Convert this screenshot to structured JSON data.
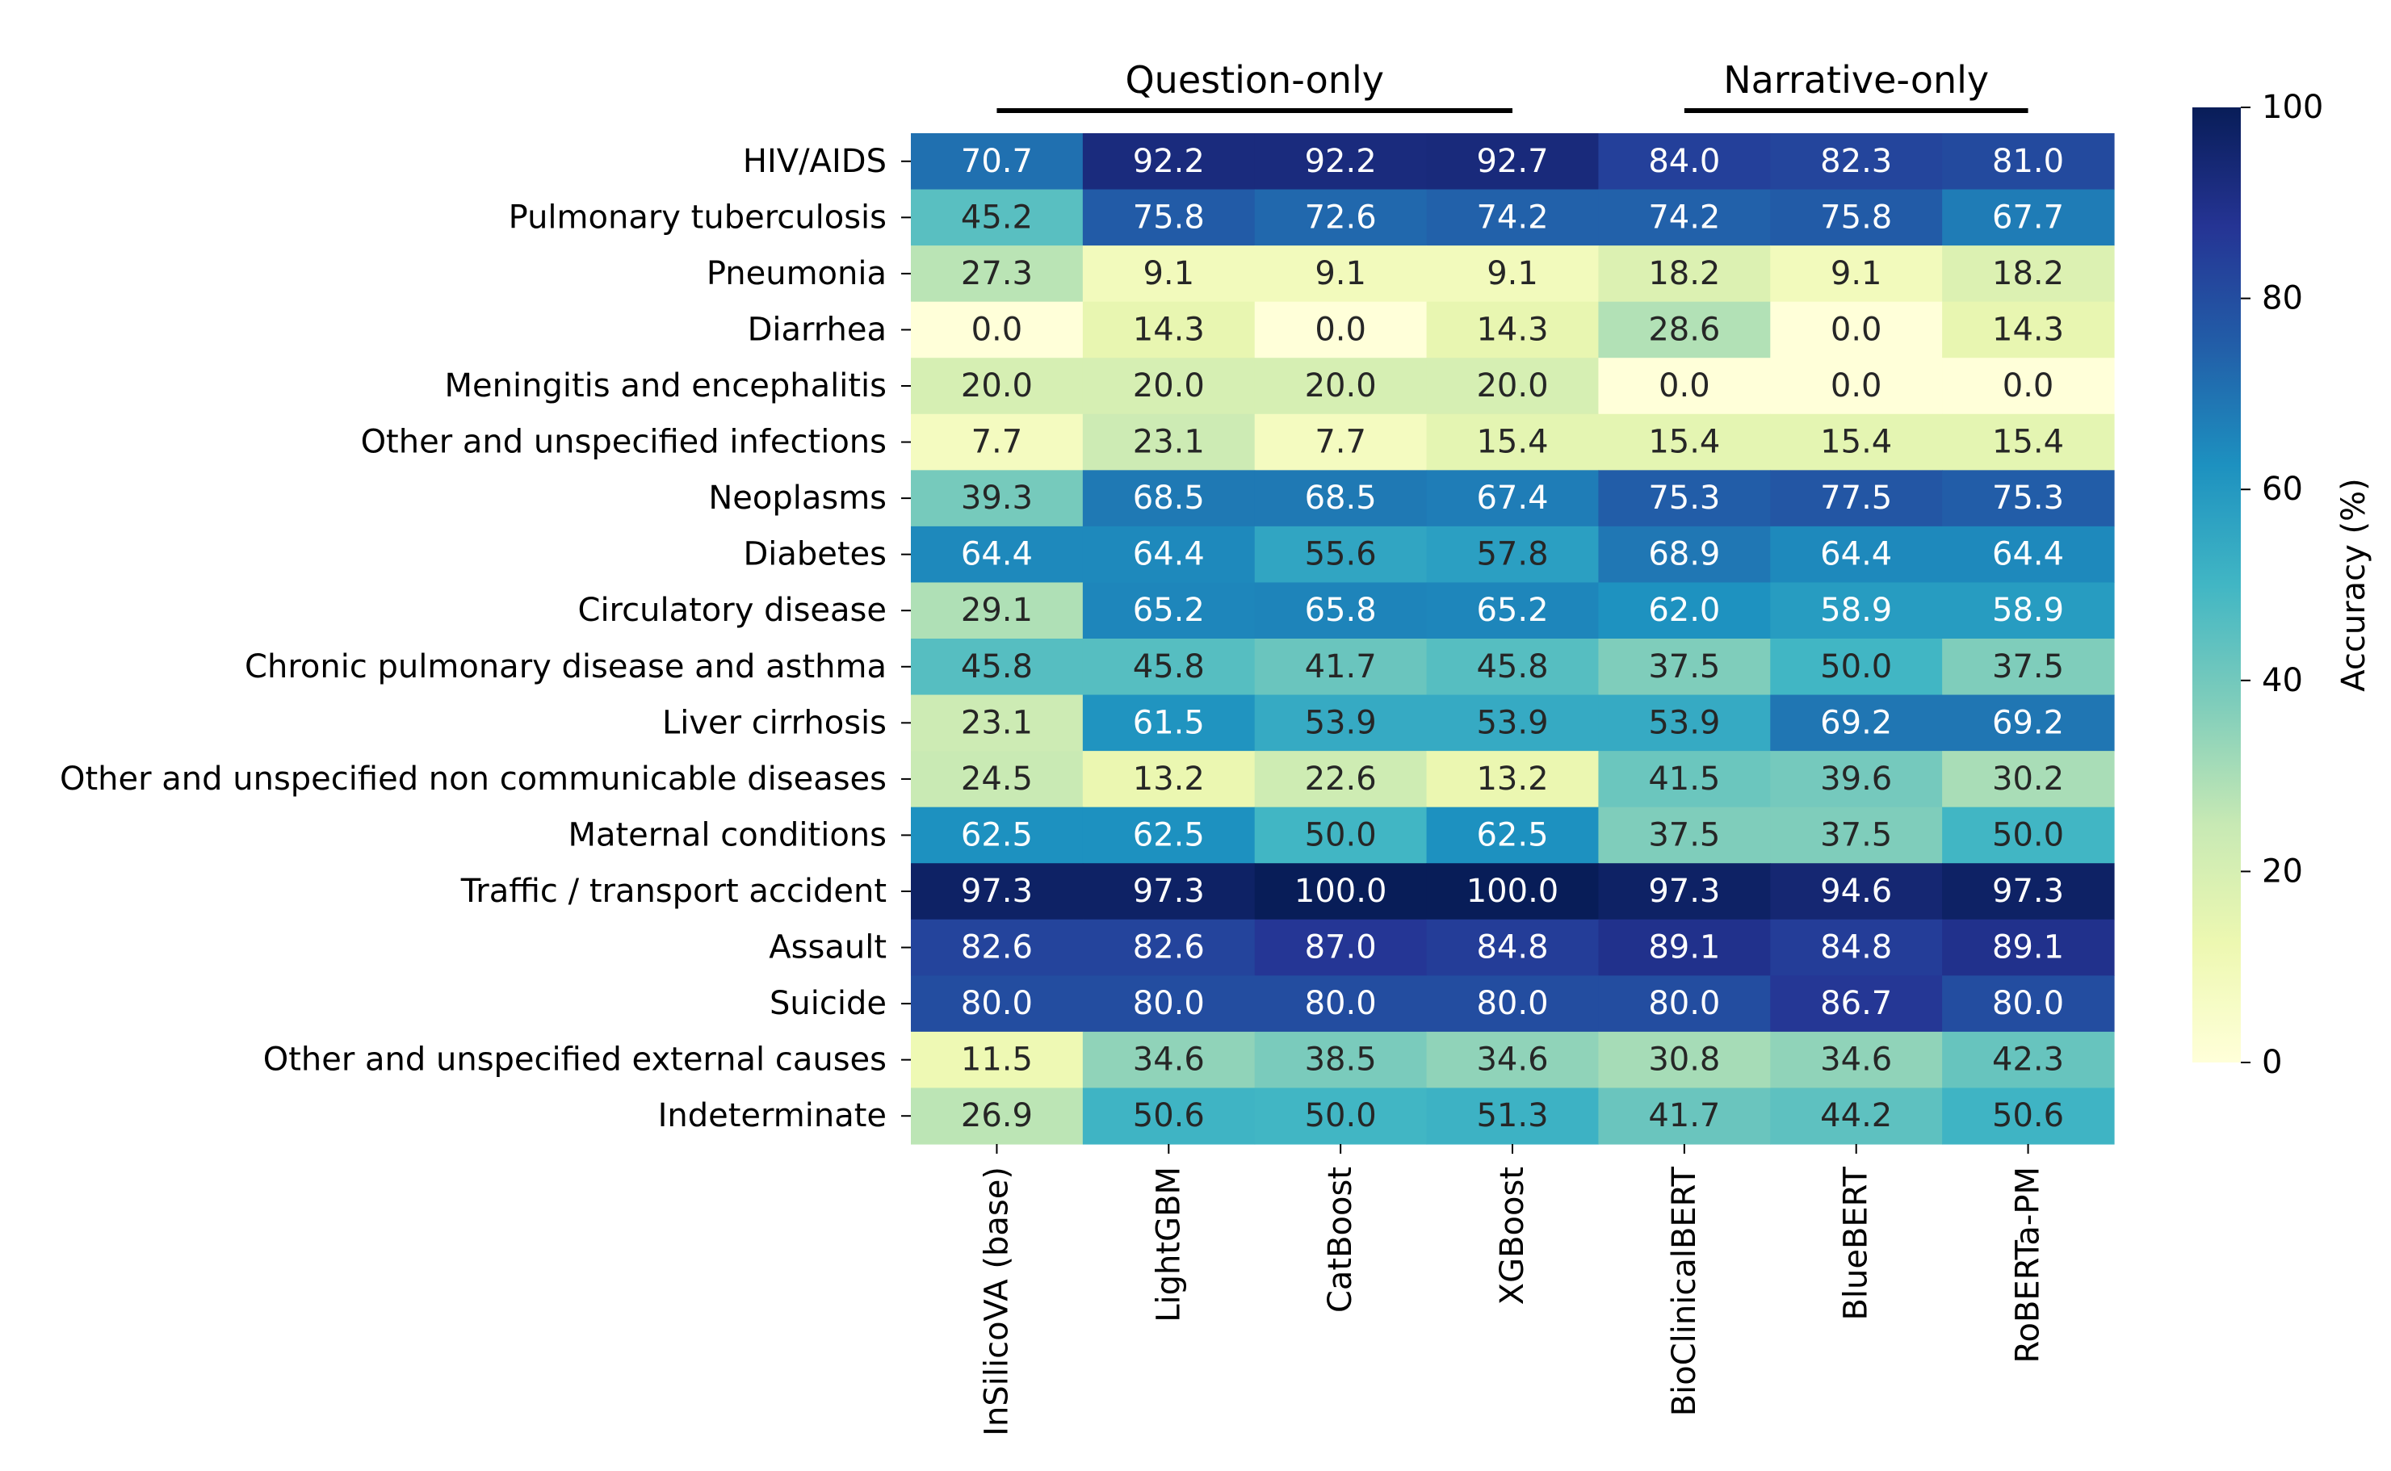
{
  "chart_data": {
    "type": "heatmap",
    "title": "",
    "xlabel": "",
    "ylabel": "",
    "groups": [
      {
        "label": "Question-only",
        "columns": [
          "InSilicoVA (base)",
          "LightGBM",
          "CatBoost",
          "XGBoost"
        ]
      },
      {
        "label": "Narrative-only",
        "columns": [
          "BioClinicalBERT",
          "BlueBERT",
          "RoBERTa-PM"
        ]
      }
    ],
    "columns": [
      "InSilicoVA (base)",
      "LightGBM",
      "CatBoost",
      "XGBoost",
      "BioClinicalBERT",
      "BlueBERT",
      "RoBERTa-PM"
    ],
    "rows": [
      "HIV/AIDS",
      "Pulmonary tuberculosis",
      "Pneumonia",
      "Diarrhea",
      "Meningitis and encephalitis",
      "Other and unspecified infections",
      "Neoplasms",
      "Diabetes",
      "Circulatory disease",
      "Chronic pulmonary disease and asthma",
      "Liver cirrhosis",
      "Other and unspecified non communicable diseases",
      "Maternal conditions",
      "Traffic / transport accident",
      "Assault",
      "Suicide",
      "Other and unspecified external causes",
      "Indeterminate"
    ],
    "values": [
      [
        "70.7",
        "92.2",
        "92.2",
        "92.7",
        "84.0",
        "82.3",
        "81.0"
      ],
      [
        "45.2",
        "75.8",
        "72.6",
        "74.2",
        "74.2",
        "75.8",
        "67.7"
      ],
      [
        "27.3",
        "9.1",
        "9.1",
        "9.1",
        "18.2",
        "9.1",
        "18.2"
      ],
      [
        "0.0",
        "14.3",
        "0.0",
        "14.3",
        "28.6",
        "0.0",
        "14.3"
      ],
      [
        "20.0",
        "20.0",
        "20.0",
        "20.0",
        "0.0",
        "0.0",
        "0.0"
      ],
      [
        "7.7",
        "23.1",
        "7.7",
        "15.4",
        "15.4",
        "15.4",
        "15.4"
      ],
      [
        "39.3",
        "68.5",
        "68.5",
        "67.4",
        "75.3",
        "77.5",
        "75.3"
      ],
      [
        "64.4",
        "64.4",
        "55.6",
        "57.8",
        "68.9",
        "64.4",
        "64.4"
      ],
      [
        "29.1",
        "65.2",
        "65.8",
        "65.2",
        "62.0",
        "58.9",
        "58.9"
      ],
      [
        "45.8",
        "45.8",
        "41.7",
        "45.8",
        "37.5",
        "50.0",
        "37.5"
      ],
      [
        "23.1",
        "61.5",
        "53.9",
        "53.9",
        "53.9",
        "69.2",
        "69.2"
      ],
      [
        "24.5",
        "13.2",
        "22.6",
        "13.2",
        "41.5",
        "39.6",
        "30.2"
      ],
      [
        "62.5",
        "62.5",
        "50.0",
        "62.5",
        "37.5",
        "37.5",
        "50.0"
      ],
      [
        "97.3",
        "97.3",
        "100.0",
        "100.0",
        "97.3",
        "94.6",
        "97.3"
      ],
      [
        "82.6",
        "82.6",
        "87.0",
        "84.8",
        "89.1",
        "84.8",
        "89.1"
      ],
      [
        "80.0",
        "80.0",
        "80.0",
        "80.0",
        "80.0",
        "86.7",
        "80.0"
      ],
      [
        "11.5",
        "34.6",
        "38.5",
        "34.6",
        "30.8",
        "34.6",
        "42.3"
      ],
      [
        "26.9",
        "50.6",
        "50.0",
        "51.3",
        "41.7",
        "44.2",
        "50.6"
      ]
    ],
    "colorbar": {
      "label": "Accuracy (%)",
      "range": [
        0,
        100
      ],
      "ticks": [
        "0",
        "20",
        "40",
        "60",
        "80",
        "100"
      ],
      "colormap": "YlGnBu",
      "stops": [
        "#ffffd9",
        "#edf8b1",
        "#c7e9b4",
        "#7fcdbb",
        "#41b6c4",
        "#1d91c0",
        "#225ea8",
        "#253494",
        "#081d58"
      ]
    },
    "grid": false
  }
}
